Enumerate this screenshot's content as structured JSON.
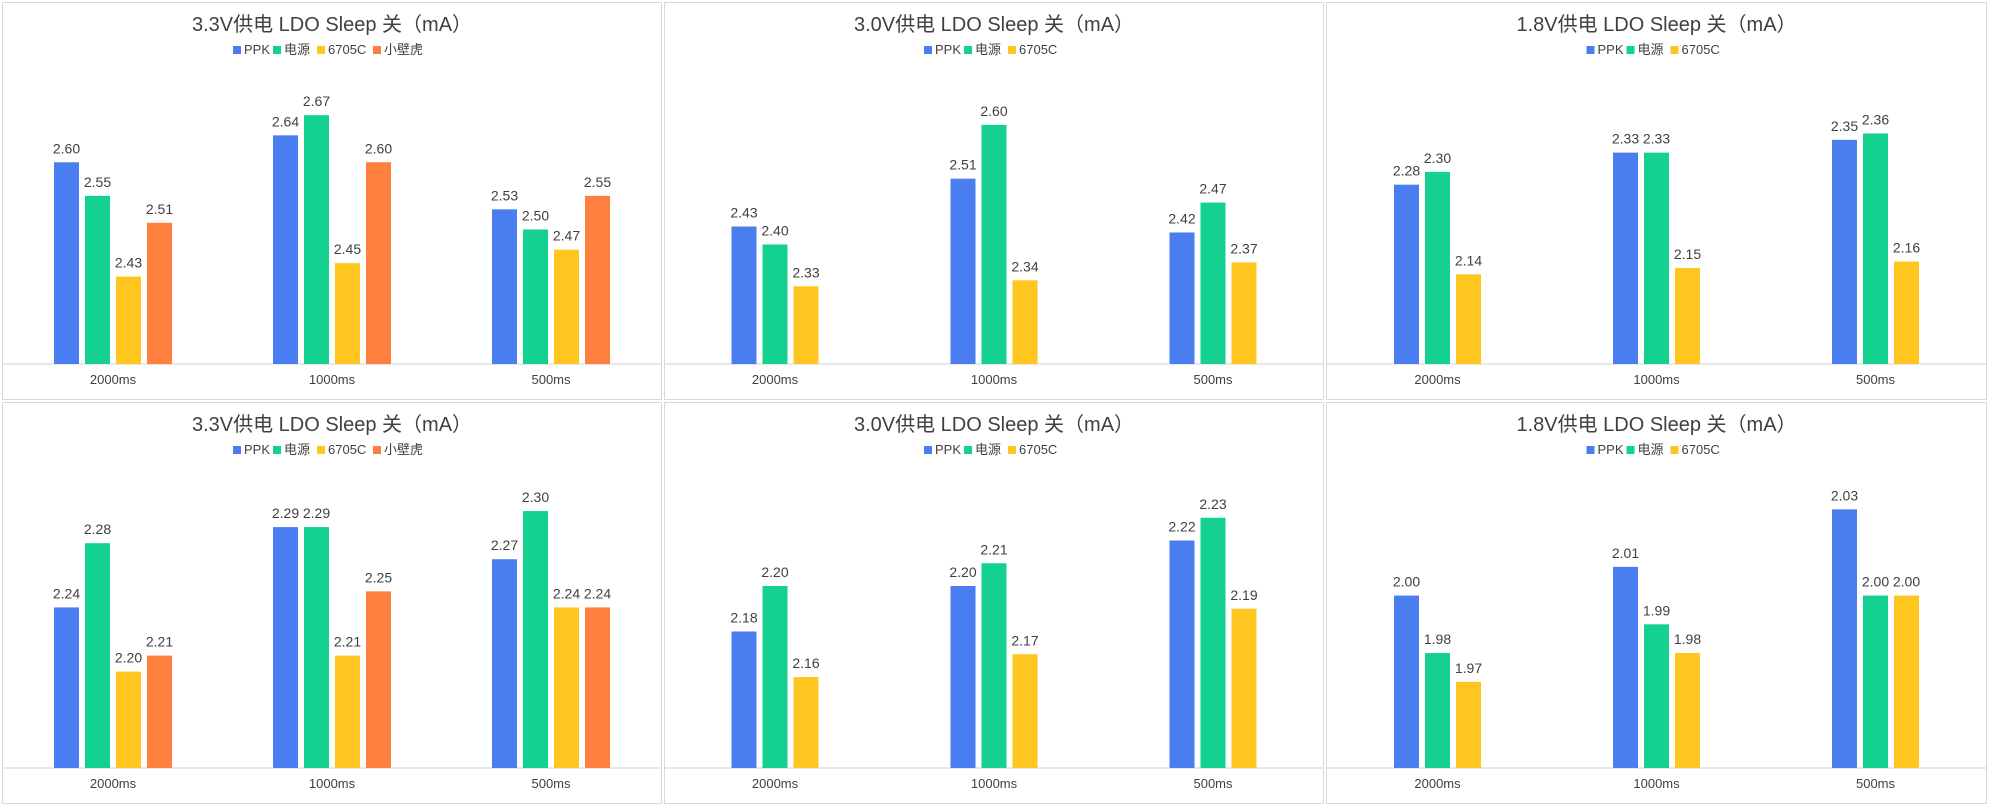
{
  "colors": {
    "PPK": "#4a7ef0",
    "电源": "#14d18f",
    "6705C": "#fec61f",
    "小壁虎": "#ff7f3f"
  },
  "chart_data": [
    {
      "type": "bar",
      "title": "3.3V供电 LDO  Sleep 关（mA）",
      "categories": [
        "2000ms",
        "1000ms",
        "500ms"
      ],
      "series": [
        {
          "name": "PPK",
          "values": [
            2.6,
            2.64,
            2.53
          ]
        },
        {
          "name": "电源",
          "values": [
            2.55,
            2.67,
            2.5
          ]
        },
        {
          "name": "6705C",
          "values": [
            2.43,
            2.45,
            2.47
          ]
        },
        {
          "name": "小壁虎",
          "values": [
            2.51,
            2.6,
            2.55
          ]
        }
      ],
      "ylim": [
        2.3,
        2.7
      ],
      "legend": "top-center"
    },
    {
      "type": "bar",
      "title": "3.0V供电 LDO  Sleep 关（mA）",
      "categories": [
        "2000ms",
        "1000ms",
        "500ms"
      ],
      "series": [
        {
          "name": "PPK",
          "values": [
            2.43,
            2.51,
            2.42
          ]
        },
        {
          "name": "电源",
          "values": [
            2.4,
            2.6,
            2.47
          ]
        },
        {
          "name": "6705C",
          "values": [
            2.33,
            2.34,
            2.37
          ]
        }
      ],
      "ylim": [
        2.2,
        2.65
      ],
      "legend": "top-center"
    },
    {
      "type": "bar",
      "title": "1.8V供电 LDO  Sleep 关（mA）",
      "categories": [
        "2000ms",
        "1000ms",
        "500ms"
      ],
      "series": [
        {
          "name": "PPK",
          "values": [
            2.28,
            2.33,
            2.35
          ]
        },
        {
          "name": "电源",
          "values": [
            2.3,
            2.33,
            2.36
          ]
        },
        {
          "name": "6705C",
          "values": [
            2.14,
            2.15,
            2.16
          ]
        }
      ],
      "ylim": [
        2.0,
        2.42
      ],
      "legend": "top-center"
    },
    {
      "type": "bar",
      "title": "3.3V供电 LDO  Sleep 关（mA）",
      "categories": [
        "2000ms",
        "1000ms",
        "500ms"
      ],
      "series": [
        {
          "name": "PPK",
          "values": [
            2.24,
            2.29,
            2.27
          ]
        },
        {
          "name": "电源",
          "values": [
            2.28,
            2.29,
            2.3
          ]
        },
        {
          "name": "6705C",
          "values": [
            2.2,
            2.21,
            2.24
          ]
        },
        {
          "name": "小壁虎",
          "values": [
            2.21,
            2.25,
            2.24
          ]
        }
      ],
      "ylim": [
        2.14,
        2.31
      ],
      "legend": "top-center"
    },
    {
      "type": "bar",
      "title": "3.0V供电 LDO  Sleep 关（mA）",
      "categories": [
        "2000ms",
        "1000ms",
        "500ms"
      ],
      "series": [
        {
          "name": "PPK",
          "values": [
            2.18,
            2.2,
            2.22
          ]
        },
        {
          "name": "电源",
          "values": [
            2.2,
            2.21,
            2.23
          ]
        },
        {
          "name": "6705C",
          "values": [
            2.16,
            2.17,
            2.19
          ]
        }
      ],
      "ylim": [
        2.12,
        2.24
      ],
      "legend": "top-center"
    },
    {
      "type": "bar",
      "title": "1.8V供电 LDO  Sleep 关（mA）",
      "categories": [
        "2000ms",
        "1000ms",
        "500ms"
      ],
      "series": [
        {
          "name": "PPK",
          "values": [
            2.0,
            2.01,
            2.03
          ]
        },
        {
          "name": "电源",
          "values": [
            1.98,
            1.99,
            2.0
          ]
        },
        {
          "name": "6705C",
          "values": [
            1.97,
            1.98,
            2.0
          ]
        }
      ],
      "ylim": [
        1.94,
        2.035
      ],
      "legend": "top-center"
    }
  ]
}
